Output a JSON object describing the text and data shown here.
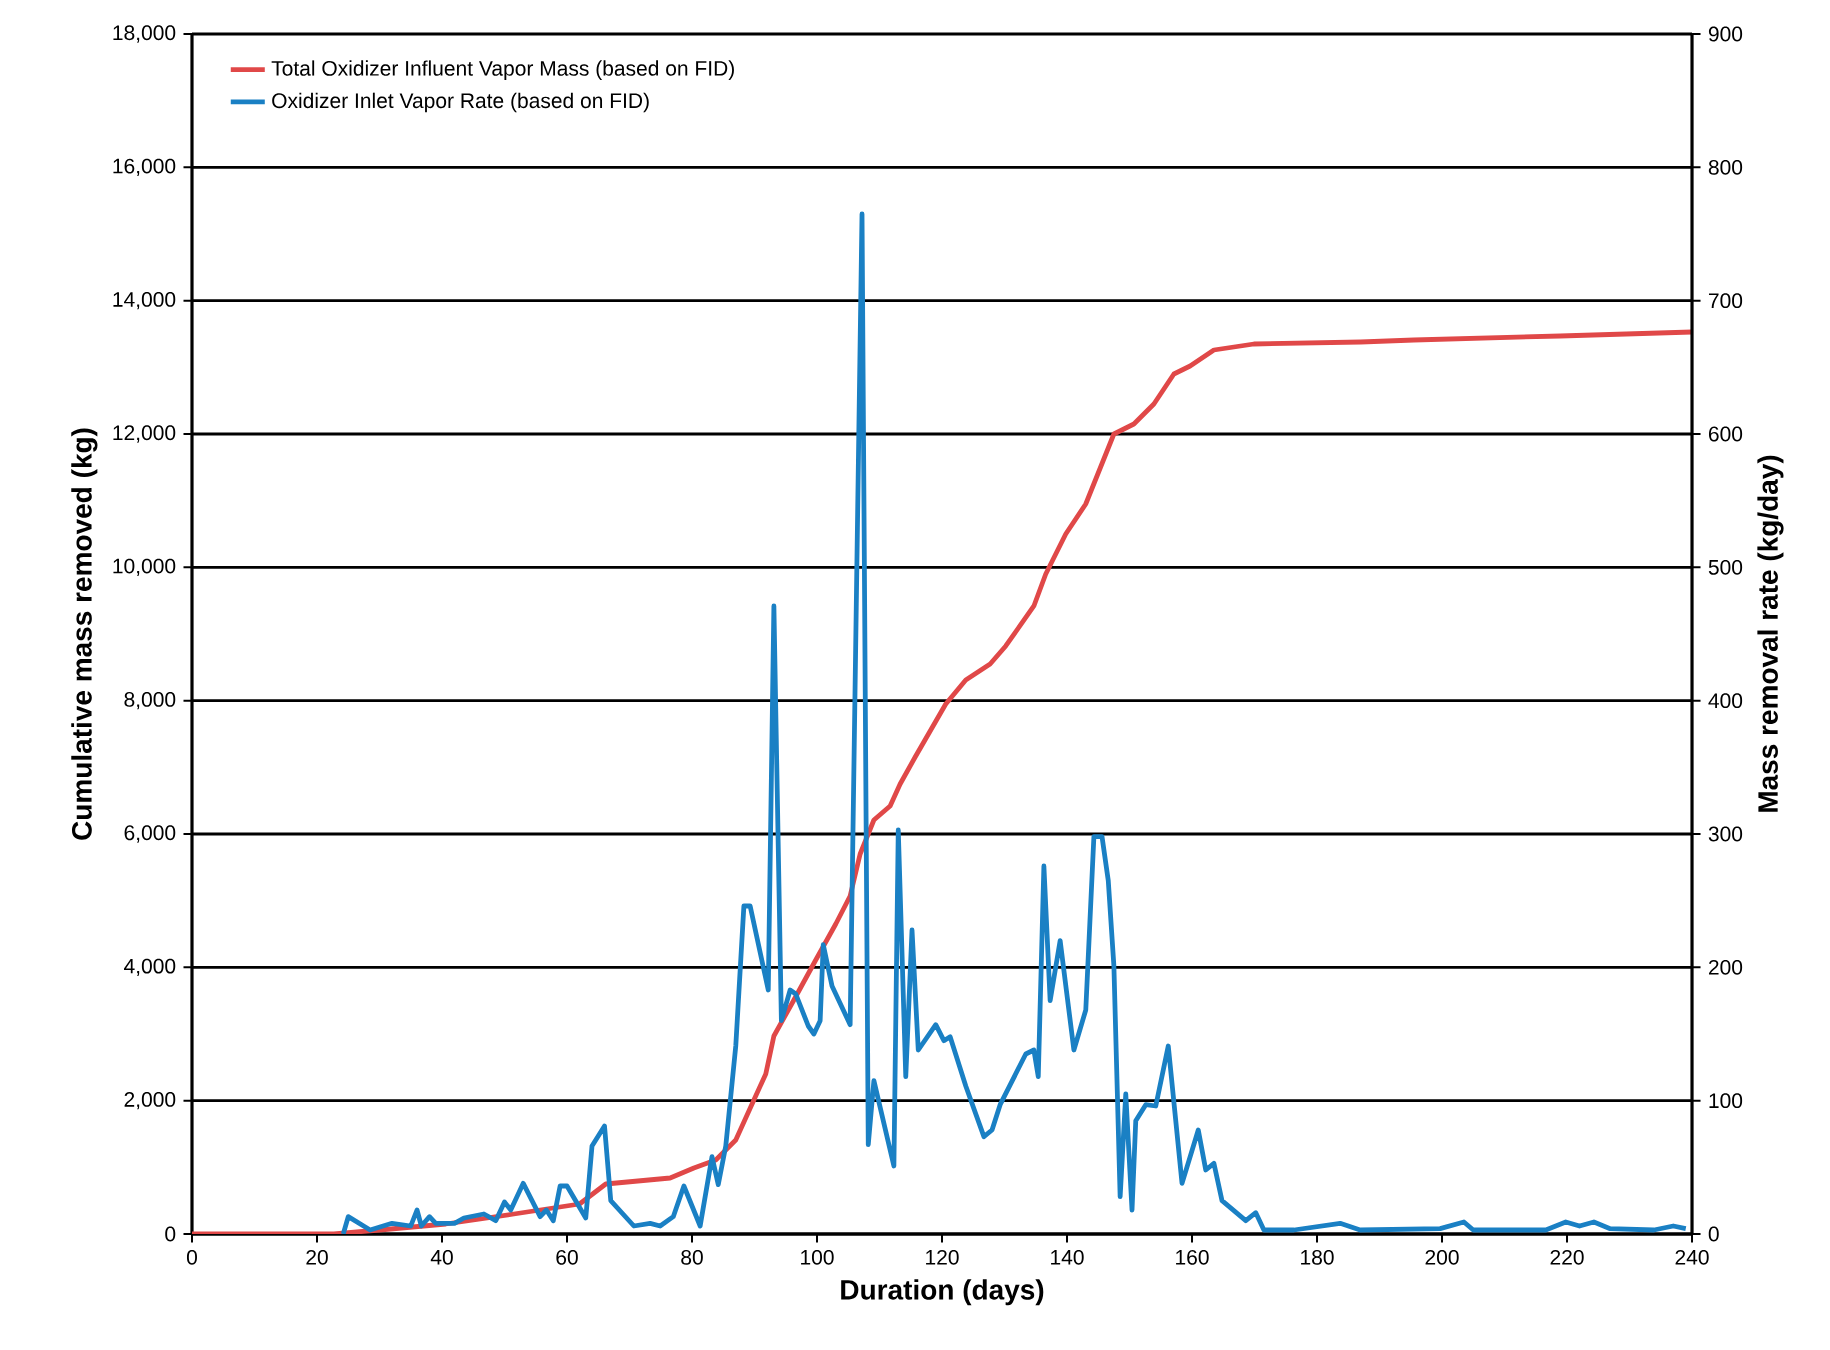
{
  "chart_data": {
    "type": "line",
    "xlabel": "Duration (days)",
    "ylabel": "Cumulative mass removed (kg)",
    "y2label": "Mass removal rate (kg/day)",
    "xlim": [
      0,
      240
    ],
    "xticks": [
      0,
      20,
      40,
      60,
      80,
      100,
      120,
      140,
      160,
      180,
      200,
      220,
      240
    ],
    "ylim": [
      0,
      18000
    ],
    "yticks": [
      {
        "value": 0,
        "label": "0"
      },
      {
        "value": 2000,
        "label": "2,000"
      },
      {
        "value": 4000,
        "label": "4,000"
      },
      {
        "value": 6000,
        "label": "6,000"
      },
      {
        "value": 8000,
        "label": "8,000"
      },
      {
        "value": 10000,
        "label": "10,000"
      },
      {
        "value": 12000,
        "label": "12,000"
      },
      {
        "value": 14000,
        "label": "14,000"
      },
      {
        "value": 16000,
        "label": "16,000"
      },
      {
        "value": 18000,
        "label": "18,000"
      }
    ],
    "y2lim": [
      0,
      900
    ],
    "y2ticks": [
      0,
      100,
      200,
      300,
      400,
      500,
      600,
      700,
      800,
      900
    ],
    "grid": "y",
    "legend": "top left",
    "series": [
      {
        "name": "Total Oxidizer Influent Vapor Mass (based on FID)",
        "color": "#e04848",
        "x": [
          0,
          22.7,
          30,
          40.6,
          51.5,
          62,
          66.2,
          76.5,
          80.3,
          83.8,
          87,
          89.9,
          91.8,
          93.1,
          96.3,
          99.8,
          103,
          105.3,
          106.9,
          109.1,
          111.7,
          113.3,
          115.8,
          120.6,
          123.8,
          127.7,
          130.2,
          134.7,
          136.6,
          139.8,
          143,
          147.5,
          150.7,
          153.9,
          157.1,
          159.7,
          163.5,
          169.9,
          187,
          195.5,
          218.9,
          240
        ],
        "values": [
          0,
          0,
          60,
          150,
          300,
          450,
          750,
          840,
          990,
          1110,
          1410,
          2010,
          2400,
          2970,
          3510,
          4110,
          4650,
          5070,
          5700,
          6210,
          6420,
          6750,
          7170,
          7950,
          8310,
          8550,
          8820,
          9420,
          9900,
          10500,
          10950,
          12000,
          12150,
          12450,
          12900,
          13020,
          13260,
          13350,
          13380,
          13410,
          13470,
          13530
        ]
      },
      {
        "name": "Oxidizer Inlet Vapor Rate (based on FID)",
        "color": "#1a80c4",
        "axis": "y2",
        "x": [
          24.2,
          25,
          28.5,
          32,
          35,
          36,
          36.7,
          38,
          39,
          42,
          43.5,
          46.7,
          48.6,
          50,
          51,
          53,
          55.7,
          56.7,
          57.8,
          58.9,
          60,
          63,
          64,
          66,
          67,
          70.7,
          73.3,
          74.9,
          77,
          78.7,
          81.3,
          83.2,
          84.2,
          85.4,
          87,
          88.3,
          89.3,
          92.2,
          93.1,
          94.3,
          95.7,
          96.6,
          98.6,
          99.5,
          100.5,
          101,
          102.4,
          105.3,
          107.2,
          108.2,
          109.1,
          112.3,
          113,
          114.2,
          115.2,
          116.2,
          119,
          120.3,
          121.3,
          123.8,
          126.7,
          128,
          129.3,
          133.4,
          134.7,
          135.4,
          136.3,
          137.3,
          138.9,
          141.1,
          143,
          144.3,
          145.6,
          146.6,
          147.5,
          148.5,
          149.4,
          150.4,
          151,
          152.6,
          154.2,
          156.2,
          158.4,
          161,
          162.2,
          163.5,
          164.8,
          168.6,
          170.2,
          171.5,
          176.3,
          183.7,
          186.9,
          199.7,
          203.5,
          205,
          216.6,
          219.8,
          222,
          224.3,
          226.9,
          233.9,
          237,
          239
        ],
        "values": [
          0,
          13,
          3,
          8,
          6,
          18,
          6,
          13,
          8,
          8,
          12,
          15,
          10,
          24,
          18,
          38,
          13,
          18,
          10,
          36,
          36,
          12,
          66,
          81,
          25,
          6,
          8,
          6,
          13,
          36,
          6,
          58,
          37,
          66,
          141,
          246,
          246,
          183,
          471,
          160,
          183,
          180,
          156,
          150,
          160,
          217,
          186,
          157,
          765,
          67,
          115,
          51,
          303,
          118,
          228,
          138,
          157,
          145,
          148,
          111,
          73,
          78,
          97,
          135,
          138,
          118,
          276,
          175,
          220,
          138,
          168,
          298,
          298,
          265,
          201,
          28,
          105,
          18,
          85,
          97,
          96,
          141,
          38,
          78,
          48,
          53,
          25,
          10,
          16,
          3,
          3,
          8,
          3,
          4,
          9,
          3,
          3,
          9,
          6,
          9,
          4,
          3,
          6,
          4
        ]
      }
    ]
  }
}
